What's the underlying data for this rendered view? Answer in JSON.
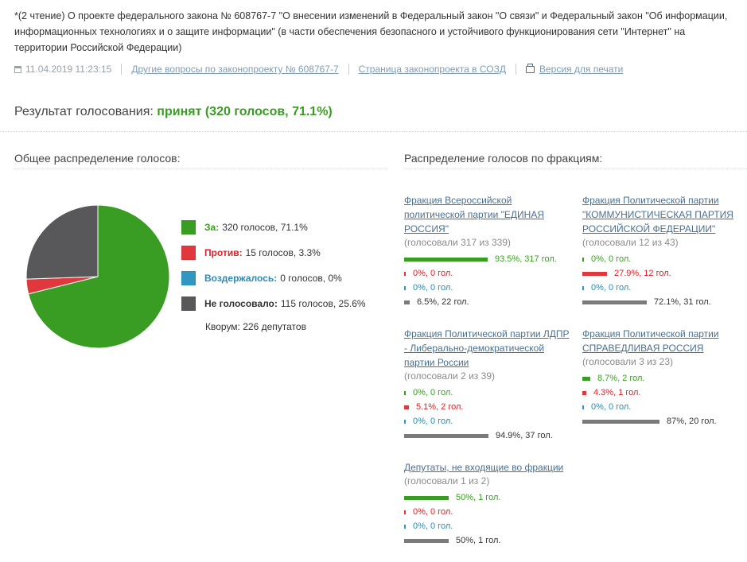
{
  "title": "*(2 чтение) О проекте федерального закона № 608767-7 \"О внесении изменений в Федеральный закон \"О связи\" и Федеральный закон \"Об информации, информационных технологиях и о защите информации\" (в части обеспечения безопасного и устойчивого функционирования сети \"Интернет\" на территории Российской Федерации)",
  "meta": {
    "datetime": "11.04.2019 11:23:15",
    "link_other": "Другие вопросы по законопроекту № 608767-7",
    "link_page": "Страница законопроекта в СОЗД",
    "link_print": "Версия для печати",
    "icons": {
      "date": "calendar-icon",
      "print": "printer-icon"
    }
  },
  "result": {
    "label": "Результат голосования:",
    "value": "принят (320 голосов, 71.1%)"
  },
  "overall": {
    "title": "Общее распределение голосов:",
    "legend": [
      {
        "label": "За:",
        "value": "320 голосов, 71.1%",
        "color": "#3a9d23",
        "labelColor": "#3a9d23"
      },
      {
        "label": "Против:",
        "value": "15 голосов, 3.3%",
        "color": "#e0383c",
        "labelColor": "#d7242a"
      },
      {
        "label": "Воздержалось:",
        "value": "0 голосов, 0%",
        "color": "#2f97c0",
        "labelColor": "#2c8ab2"
      },
      {
        "label": "Не голосовало:",
        "value": "115 голосов, 25.6%",
        "color": "#58585a",
        "labelColor": "#333333"
      }
    ],
    "quorum": "Кворум: 226 депутатов"
  },
  "chart_data": {
    "type": "pie",
    "categories": [
      "За",
      "Против",
      "Воздержалось",
      "Не голосовало"
    ],
    "values": [
      320,
      15,
      0,
      115
    ],
    "percentages": [
      71.1,
      3.3,
      0,
      25.6
    ],
    "colors": [
      "#3a9d23",
      "#e0383c",
      "#2f97c0",
      "#58585a"
    ]
  },
  "factions_section": {
    "title": "Распределение голосов по фракциям:",
    "colors": {
      "for": "#3a9d23",
      "against": "#e0383c",
      "abstain": "#2f97c0",
      "absent": "#7a7a7a"
    },
    "factions": [
      {
        "name": "Фракция Всероссийской политической партии \"ЕДИНАЯ РОССИЯ\"",
        "voted": "(голосовали 317 из 339)",
        "rows": [
          {
            "kind": "for",
            "fraction": 0.935,
            "text": "93.5%, 317 гол."
          },
          {
            "kind": "against",
            "fraction": 0,
            "text": "0%, 0 гол."
          },
          {
            "kind": "abstain",
            "fraction": 0,
            "text": "0%, 0 гол."
          },
          {
            "kind": "absent",
            "fraction": 0.065,
            "text": "6.5%, 22 гол."
          }
        ]
      },
      {
        "name": "Фракция Политической партии \"КОММУНИСТИЧЕСКАЯ ПАРТИЯ РОССИЙСКОЙ ФЕДЕРАЦИИ\"",
        "voted": "(голосовали 12 из 43)",
        "rows": [
          {
            "kind": "for",
            "fraction": 0,
            "text": "0%, 0 гол."
          },
          {
            "kind": "against",
            "fraction": 0.279,
            "text": "27.9%, 12 гол."
          },
          {
            "kind": "abstain",
            "fraction": 0,
            "text": "0%, 0 гол."
          },
          {
            "kind": "absent",
            "fraction": 0.721,
            "text": "72.1%, 31 гол."
          }
        ]
      },
      {
        "name": "Фракция Политической партии ЛДПР - Либерально-демократической партии России",
        "voted": "(голосовали 2 из 39)",
        "rows": [
          {
            "kind": "for",
            "fraction": 0,
            "text": "0%, 0 гол."
          },
          {
            "kind": "against",
            "fraction": 0.051,
            "text": "5.1%, 2 гол."
          },
          {
            "kind": "abstain",
            "fraction": 0,
            "text": "0%, 0 гол."
          },
          {
            "kind": "absent",
            "fraction": 0.949,
            "text": "94.9%, 37 гол."
          }
        ]
      },
      {
        "name": "Фракция Политической партии СПРАВЕДЛИВАЯ РОССИЯ",
        "voted": "(голосовали 3 из 23)",
        "rows": [
          {
            "kind": "for",
            "fraction": 0.087,
            "text": "8.7%, 2 гол."
          },
          {
            "kind": "against",
            "fraction": 0.043,
            "text": "4.3%, 1 гол."
          },
          {
            "kind": "abstain",
            "fraction": 0,
            "text": "0%, 0 гол."
          },
          {
            "kind": "absent",
            "fraction": 0.87,
            "text": "87%, 20 гол."
          }
        ]
      },
      {
        "name": "Депутаты, не входящие во фракции",
        "voted": "(голосовали 1 из 2)",
        "rows": [
          {
            "kind": "for",
            "fraction": 0.5,
            "text": "50%, 1 гол."
          },
          {
            "kind": "against",
            "fraction": 0,
            "text": "0%, 0 гол."
          },
          {
            "kind": "abstain",
            "fraction": 0,
            "text": "0%, 0 гол."
          },
          {
            "kind": "absent",
            "fraction": 0.5,
            "text": "50%, 1 гол."
          }
        ]
      }
    ]
  }
}
